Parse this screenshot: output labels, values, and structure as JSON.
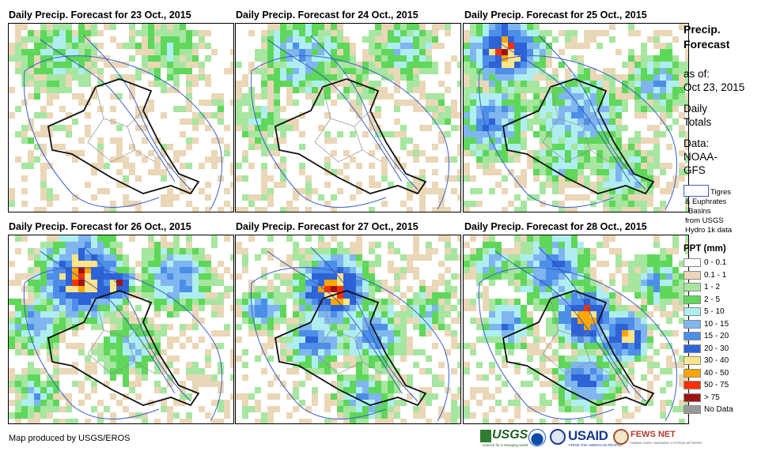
{
  "panels": [
    {
      "title": "Daily Precip. Forecast for 23 Oct., 2015",
      "scene": 1
    },
    {
      "title": "Daily Precip. Forecast for 24 Oct., 2015",
      "scene": 2
    },
    {
      "title": "Daily Precip. Forecast for 25 Oct., 2015",
      "scene": 3
    },
    {
      "title": "Daily Precip. Forecast for 26 Oct., 2015",
      "scene": 4
    },
    {
      "title": "Daily Precip. Forecast for 27 Oct., 2015",
      "scene": 5
    },
    {
      "title": "Daily Precip. Forecast for 28 Oct., 2015",
      "scene": 6
    }
  ],
  "legend": {
    "title_line1": "Precip.",
    "title_line2": "Forecast",
    "asof_line1": "as of:",
    "asof_line2": "Oct 23, 2015",
    "daily_line1": "Daily",
    "daily_line2": "Totals",
    "data_line1": "Data:",
    "data_line2": "NOAA-",
    "data_line3": "GFS",
    "basin_line1": "Tigres",
    "basin_line2": "& Euphrates",
    "basin_line3": "Basins",
    "basin_line4": "from USGS",
    "basin_line5": "Hydro 1k data",
    "ppt_title": "PPT (mm)",
    "classes": [
      {
        "label": "0 - 0.1",
        "color": "#ffffff"
      },
      {
        "label": "0.1 - 1",
        "color": "#ead7b7"
      },
      {
        "label": "1 - 2",
        "color": "#a6e6a0"
      },
      {
        "label": "2 - 5",
        "color": "#5fd75a"
      },
      {
        "label": "5 - 10",
        "color": "#aeeef0"
      },
      {
        "label": "10 - 15",
        "color": "#7fb6ef"
      },
      {
        "label": "15 - 20",
        "color": "#4c8ee8"
      },
      {
        "label": "20 - 30",
        "color": "#2d63d6"
      },
      {
        "label": "30 - 40",
        "color": "#ffe48a"
      },
      {
        "label": "40 - 50",
        "color": "#ffa500"
      },
      {
        "label": "50 - 75",
        "color": "#ff3000"
      },
      {
        "label": "> 75",
        "color": "#9e1414"
      },
      {
        "label": "No Data",
        "color": "#999999"
      }
    ]
  },
  "footer": {
    "credit": "Map produced by USGS/EROS",
    "logo_usgs": "USGS",
    "logo_usgs_tagline": "science for a changing world",
    "logo_usaid": "USAID",
    "logo_usaid_tagline": "FROM THE AMERICAN PEOPLE",
    "logo_fews": "FEWS NET",
    "logo_fews_tagline": "FAMINE EARLY WARNING SYSTEMS NETWORK"
  }
}
